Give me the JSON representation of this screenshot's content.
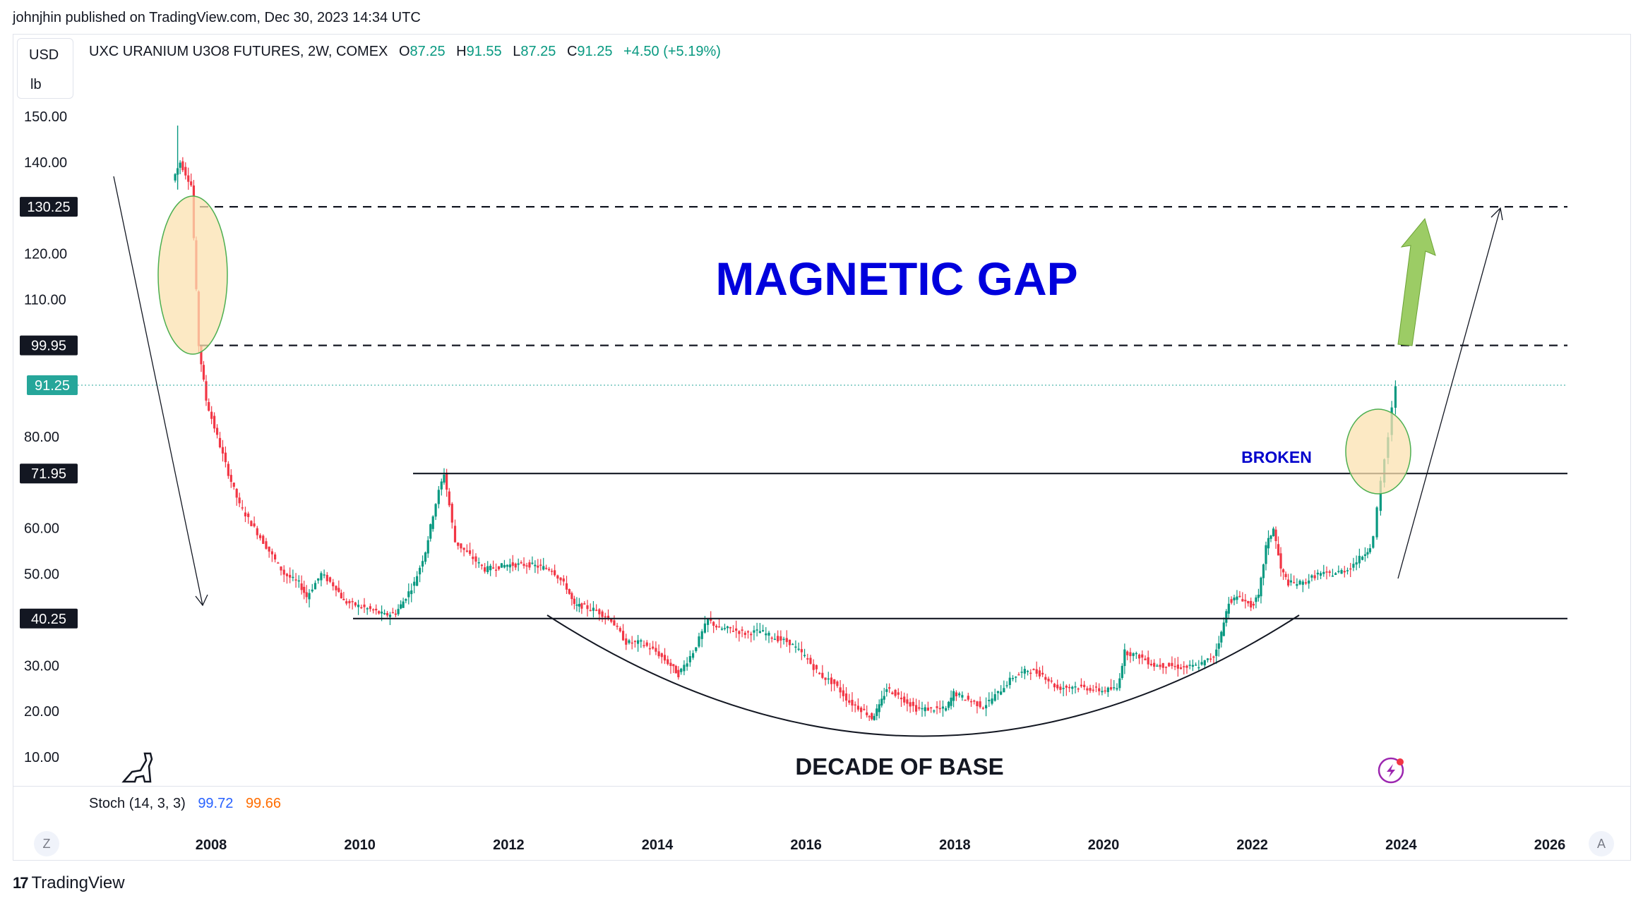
{
  "publisher_line": "johnjhin published on TradingView.com, Dec 30, 2023 14:34 UTC",
  "unit": {
    "currency": "USD",
    "measure": "lb"
  },
  "legend": {
    "symbol": "UXC URANIUM U3O8 FUTURES, 2W, COMEX",
    "open_label": "O",
    "open": "87.25",
    "high_label": "H",
    "high": "91.55",
    "low_label": "L",
    "low": "87.25",
    "close_label": "C",
    "close": "91.25",
    "change": "+4.50 (+5.19%)"
  },
  "indicator": {
    "name": "Stoch (14, 3, 3)",
    "k": "99.72",
    "d": "99.66"
  },
  "footer": {
    "logo_mark": "17",
    "logo_text": "TradingView"
  },
  "buttons": {
    "left": "Z",
    "right": "A"
  },
  "colors": {
    "up": "#089981",
    "down": "#f23645",
    "annotation_blue": "#0000dd",
    "ellipse_fill": "#fbe2b0",
    "ellipse_stroke": "#4caf50",
    "arrow_green": "#8bc34a",
    "last_price_badge": "#26a69a"
  },
  "chart_data": {
    "type": "candlestick",
    "interval": "2W",
    "y_ticks": [
      "150.00",
      "140.00",
      "120.00",
      "110.00",
      "80.00",
      "60.00",
      "50.00",
      "30.00",
      "20.00",
      "10.00"
    ],
    "y_tick_values": [
      150,
      140,
      120,
      110,
      80,
      60,
      50,
      30,
      20,
      10
    ],
    "x_ticks": [
      "2008",
      "2010",
      "2012",
      "2014",
      "2016",
      "2018",
      "2020",
      "2022",
      "2024",
      "2026"
    ],
    "x_tick_values": [
      2008,
      2010,
      2012,
      2014,
      2016,
      2018,
      2020,
      2022,
      2024,
      2026
    ],
    "ylim": [
      10,
      150
    ],
    "xlim": [
      2006.5,
      2026.7
    ],
    "price_levels": [
      {
        "label": "130.25",
        "value": 130.25,
        "style": "dashed"
      },
      {
        "label": "99.95",
        "value": 99.95,
        "style": "dashed"
      },
      {
        "label": "71.95",
        "value": 71.95,
        "style": "solid"
      },
      {
        "label": "40.25",
        "value": 40.25,
        "style": "solid"
      }
    ],
    "last_price": {
      "label": "91.25",
      "value": 91.25
    },
    "close_series": [
      [
        2007.5,
        136
      ],
      [
        2007.6,
        140
      ],
      [
        2007.75,
        135
      ],
      [
        2007.85,
        100
      ],
      [
        2007.95,
        88
      ],
      [
        2008.1,
        80
      ],
      [
        2008.25,
        72
      ],
      [
        2008.4,
        65
      ],
      [
        2008.6,
        60
      ],
      [
        2008.8,
        55
      ],
      [
        2009.0,
        50
      ],
      [
        2009.2,
        48
      ],
      [
        2009.3,
        45
      ],
      [
        2009.5,
        50
      ],
      [
        2009.7,
        47
      ],
      [
        2009.8,
        44
      ],
      [
        2010.0,
        43
      ],
      [
        2010.2,
        42
      ],
      [
        2010.35,
        41
      ],
      [
        2010.5,
        41.5
      ],
      [
        2010.6,
        44
      ],
      [
        2010.75,
        48
      ],
      [
        2010.9,
        55
      ],
      [
        2011.0,
        63
      ],
      [
        2011.08,
        68
      ],
      [
        2011.15,
        72
      ],
      [
        2011.22,
        65
      ],
      [
        2011.3,
        57
      ],
      [
        2011.5,
        54
      ],
      [
        2011.7,
        51
      ],
      [
        2012.0,
        52
      ],
      [
        2012.3,
        52
      ],
      [
        2012.6,
        51
      ],
      [
        2012.8,
        47
      ],
      [
        2012.9,
        43
      ],
      [
        2013.0,
        43
      ],
      [
        2013.2,
        42
      ],
      [
        2013.4,
        40
      ],
      [
        2013.6,
        35
      ],
      [
        2013.8,
        35
      ],
      [
        2014.0,
        33
      ],
      [
        2014.2,
        30
      ],
      [
        2014.3,
        28
      ],
      [
        2014.5,
        33
      ],
      [
        2014.7,
        40
      ],
      [
        2014.85,
        38
      ],
      [
        2015.0,
        38
      ],
      [
        2015.2,
        37
      ],
      [
        2015.4,
        37.5
      ],
      [
        2015.6,
        36
      ],
      [
        2015.8,
        35
      ],
      [
        2016.0,
        32
      ],
      [
        2016.2,
        28
      ],
      [
        2016.4,
        26
      ],
      [
        2016.6,
        22
      ],
      [
        2016.8,
        20
      ],
      [
        2016.9,
        18.5
      ],
      [
        2017.0,
        21
      ],
      [
        2017.1,
        25
      ],
      [
        2017.3,
        23
      ],
      [
        2017.5,
        20.5
      ],
      [
        2017.7,
        20.5
      ],
      [
        2017.9,
        20.5
      ],
      [
        2018.0,
        24
      ],
      [
        2018.2,
        22.5
      ],
      [
        2018.4,
        21
      ],
      [
        2018.6,
        24
      ],
      [
        2018.8,
        27.5
      ],
      [
        2019.0,
        29
      ],
      [
        2019.2,
        28
      ],
      [
        2019.4,
        25
      ],
      [
        2019.6,
        25.5
      ],
      [
        2019.8,
        25
      ],
      [
        2020.0,
        24.5
      ],
      [
        2020.2,
        25
      ],
      [
        2020.3,
        33
      ],
      [
        2020.5,
        32
      ],
      [
        2020.7,
        30
      ],
      [
        2020.9,
        30
      ],
      [
        2021.1,
        29.5
      ],
      [
        2021.3,
        30
      ],
      [
        2021.5,
        32
      ],
      [
        2021.6,
        37
      ],
      [
        2021.7,
        44
      ],
      [
        2021.85,
        45
      ],
      [
        2022.0,
        43
      ],
      [
        2022.1,
        45
      ],
      [
        2022.2,
        56
      ],
      [
        2022.3,
        60
      ],
      [
        2022.4,
        51
      ],
      [
        2022.5,
        48
      ],
      [
        2022.7,
        48
      ],
      [
        2022.9,
        50
      ],
      [
        2023.1,
        50
      ],
      [
        2023.3,
        51
      ],
      [
        2023.5,
        54
      ],
      [
        2023.6,
        56
      ],
      [
        2023.65,
        58
      ],
      [
        2023.7,
        64
      ],
      [
        2023.75,
        70
      ],
      [
        2023.8,
        75
      ],
      [
        2023.85,
        80
      ],
      [
        2023.9,
        86
      ],
      [
        2023.95,
        91.25
      ]
    ]
  },
  "annotations": {
    "title": "MAGNETIC GAP",
    "broken": "BROKEN",
    "base": "DECADE OF BASE"
  }
}
